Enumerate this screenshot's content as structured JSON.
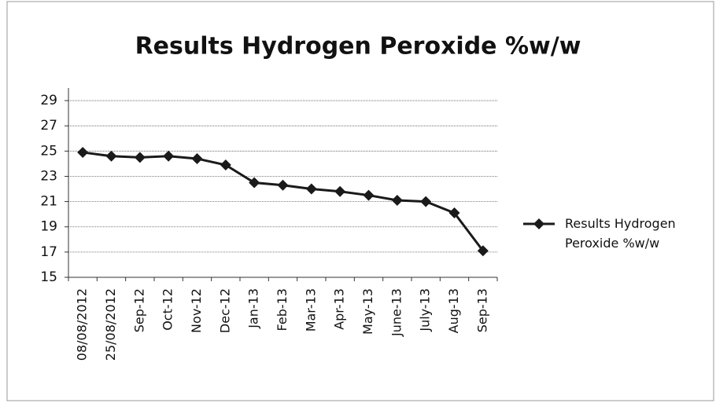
{
  "chart_data": {
    "type": "line",
    "title": "Results Hydrogen Peroxide %w/w",
    "categories": [
      "08/08/2012",
      "25/08/2012",
      "Sep-12",
      "Oct-12",
      "Nov-12",
      "Dec-12",
      "Jan-13",
      "Feb-13",
      "Mar-13",
      "Apr-13",
      "May-13",
      "June-13",
      "July-13",
      "Aug-13",
      "Sep-13"
    ],
    "series": [
      {
        "name": "Results Hydrogen Peroxide %w/w",
        "color": "#1a1a1a",
        "values": [
          24.9,
          24.6,
          24.5,
          24.6,
          24.4,
          23.9,
          22.5,
          22.3,
          22.0,
          21.8,
          21.5,
          21.1,
          21.0,
          20.1,
          17.1
        ]
      }
    ],
    "ylim": [
      15,
      30
    ],
    "yticks": [
      15,
      17,
      19,
      21,
      23,
      25,
      27,
      29
    ],
    "grid": true,
    "legend": "right"
  }
}
